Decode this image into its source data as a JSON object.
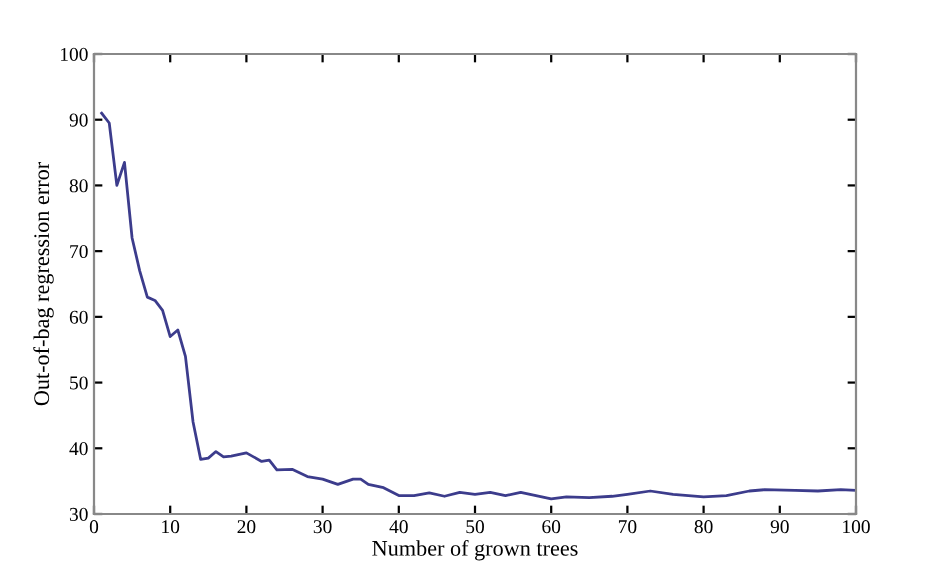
{
  "chart_data": {
    "type": "line",
    "xlabel": "Number of grown trees",
    "ylabel": "Out-of-bag regression error",
    "series": [
      {
        "color": "#3c3c8c",
        "x": [
          1,
          2,
          3,
          4,
          5,
          6,
          7,
          8,
          9,
          10,
          11,
          12,
          13,
          14,
          15,
          16,
          17,
          18,
          20,
          22,
          23,
          24,
          26,
          28,
          30,
          32,
          34,
          35,
          36,
          38,
          40,
          42,
          44,
          46,
          48,
          50,
          52,
          54,
          56,
          58,
          60,
          62,
          65,
          68,
          70,
          73,
          76,
          80,
          83,
          86,
          88,
          92,
          95,
          98,
          100
        ],
        "values": [
          91,
          89.5,
          80,
          83.5,
          72,
          67,
          63,
          62.5,
          61,
          57,
          58,
          54,
          44,
          38.3,
          38.5,
          39.5,
          38.7,
          38.8,
          39.3,
          38,
          38.2,
          36.7,
          36.8,
          35.7,
          35.3,
          34.5,
          35.3,
          35.3,
          34.5,
          34,
          32.8,
          32.8,
          33.2,
          32.7,
          33.3,
          33,
          33.3,
          32.8,
          33.3,
          32.8,
          32.3,
          32.6,
          32.5,
          32.7,
          33,
          33.5,
          33,
          32.6,
          32.8,
          33.5,
          33.7,
          33.6,
          33.5,
          33.7,
          33.6
        ]
      }
    ],
    "xlim": [
      0,
      100
    ],
    "ylim": [
      30,
      100
    ],
    "xticks": [
      0,
      10,
      20,
      30,
      40,
      50,
      60,
      70,
      80,
      90,
      100
    ],
    "yticks": [
      30,
      40,
      50,
      60,
      70,
      80,
      90,
      100
    ],
    "grid": false,
    "legend": false,
    "marker": "none",
    "line_style": "solid"
  }
}
